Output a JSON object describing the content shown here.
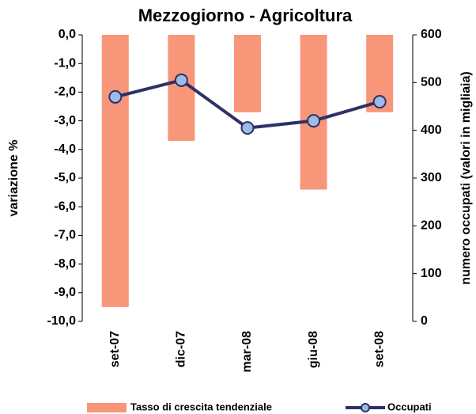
{
  "chart_data": {
    "type": "bar-line",
    "title": "Mezzogiorno - Agricoltura",
    "ylabel": "variazione %",
    "y2label": "numero occupati (valori in migliaia)",
    "categories": [
      "set-07",
      "dic-07",
      "mar-08",
      "giu-08",
      "set-08"
    ],
    "series": [
      {
        "name": "Tasso di crescita tendenziale",
        "type": "bar",
        "color": "#f79679",
        "values": [
          -9.5,
          -3.7,
          -2.7,
          -5.4,
          -2.7
        ]
      },
      {
        "name": "Occupati",
        "type": "line",
        "axis": "y2",
        "color": "#2e3168",
        "marker_color": "#9dbbe3",
        "values": [
          470,
          505,
          405,
          420,
          460
        ]
      }
    ],
    "ylim": [
      -10,
      0
    ],
    "yticks": [
      {
        "value": 0,
        "label": "0,0"
      },
      {
        "value": -1,
        "label": "-1,0"
      },
      {
        "value": -2,
        "label": "-2,0"
      },
      {
        "value": -3,
        "label": "-3,0"
      },
      {
        "value": -4,
        "label": "-4,0"
      },
      {
        "value": -5,
        "label": "-5,0"
      },
      {
        "value": -6,
        "label": "-6,0"
      },
      {
        "value": -7,
        "label": "-7,0"
      },
      {
        "value": -8,
        "label": "-8,0"
      },
      {
        "value": -9,
        "label": "-9,0"
      },
      {
        "value": -10,
        "label": "-10,0"
      }
    ],
    "y2lim": [
      0,
      600
    ],
    "y2ticks": [
      0,
      100,
      200,
      300,
      400,
      500,
      600
    ]
  }
}
